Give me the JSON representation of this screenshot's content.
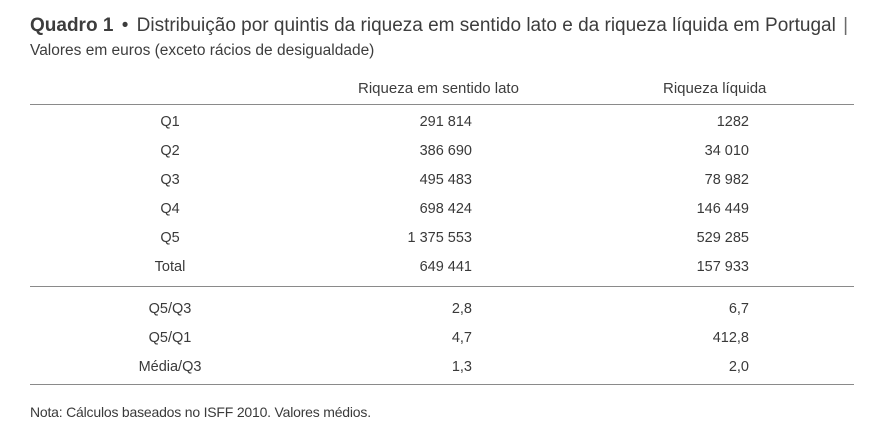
{
  "title": {
    "label": "Quadro 1",
    "bullet": "•",
    "text": "Distribuição por quintis da riqueza em sentido lato e da riqueza líquida em Portugal",
    "separator": "|",
    "subtitle": "Valores em euros (exceto rácios de desigualdade)"
  },
  "table": {
    "columns": [
      "",
      "Riqueza em sentido lato",
      "Riqueza líquida"
    ],
    "quintile_rows": [
      {
        "label": "Q1",
        "broad": "291 814",
        "net": "1282"
      },
      {
        "label": "Q2",
        "broad": "386 690",
        "net": "34 010"
      },
      {
        "label": "Q3",
        "broad": "495 483",
        "net": "78 982"
      },
      {
        "label": "Q4",
        "broad": "698 424",
        "net": "146 449"
      },
      {
        "label": "Q5",
        "broad": "1 375 553",
        "net": "529 285"
      },
      {
        "label": "Total",
        "broad": "649 441",
        "net": "157 933"
      }
    ],
    "ratio_rows": [
      {
        "label": "Q5/Q3",
        "broad": "2,8",
        "net": "6,7"
      },
      {
        "label": "Q5/Q1",
        "broad": "4,7",
        "net": "412,8"
      },
      {
        "label": "Média/Q3",
        "broad": "1,3",
        "net": "2,0"
      }
    ]
  },
  "note": "Nota: Cálculos baseados no ISFF 2010. Valores médios."
}
